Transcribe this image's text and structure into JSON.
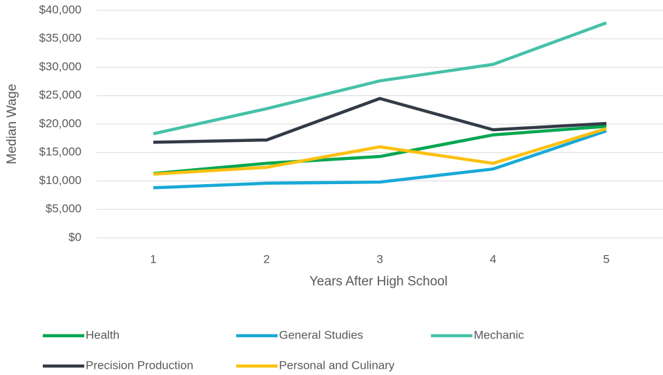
{
  "chart_data": {
    "type": "line",
    "x_label": "Years After High School",
    "y_label": "Median Wage",
    "x": [
      1,
      2,
      3,
      4,
      5
    ],
    "xlim": [
      0.5,
      5.5
    ],
    "xticks": [
      1,
      2,
      3,
      4,
      5
    ],
    "ylim": [
      0,
      40000
    ],
    "yticks": [
      {
        "value": 0,
        "label": "$0"
      },
      {
        "value": 5000,
        "label": "$5,000"
      },
      {
        "value": 10000,
        "label": "$10,000"
      },
      {
        "value": 15000,
        "label": "$15,000"
      },
      {
        "value": 20000,
        "label": "$20,000"
      },
      {
        "value": 25000,
        "label": "$25,000"
      },
      {
        "value": 30000,
        "label": "$30,000"
      },
      {
        "value": 35000,
        "label": "$35,000"
      },
      {
        "value": 40000,
        "label": "$40,000"
      }
    ],
    "grid": true,
    "legend": "bottom",
    "series": [
      {
        "name": "Health",
        "color": "#00a651",
        "values": [
          11300,
          13100,
          14300,
          18100,
          19600
        ]
      },
      {
        "name": "General Studies",
        "color": "#17a9d6",
        "values": [
          8800,
          9600,
          9800,
          12100,
          18800
        ]
      },
      {
        "name": "Mechanic",
        "color": "#46c1a8",
        "values": [
          18300,
          22700,
          27600,
          30500,
          37800
        ]
      },
      {
        "name": "Precision Production",
        "color": "#323b45",
        "values": [
          16800,
          17200,
          24500,
          19000,
          20100
        ]
      },
      {
        "name": "Personal and Culinary",
        "color": "#fcc010",
        "values": [
          11200,
          12400,
          16000,
          13100,
          19200
        ]
      }
    ]
  }
}
